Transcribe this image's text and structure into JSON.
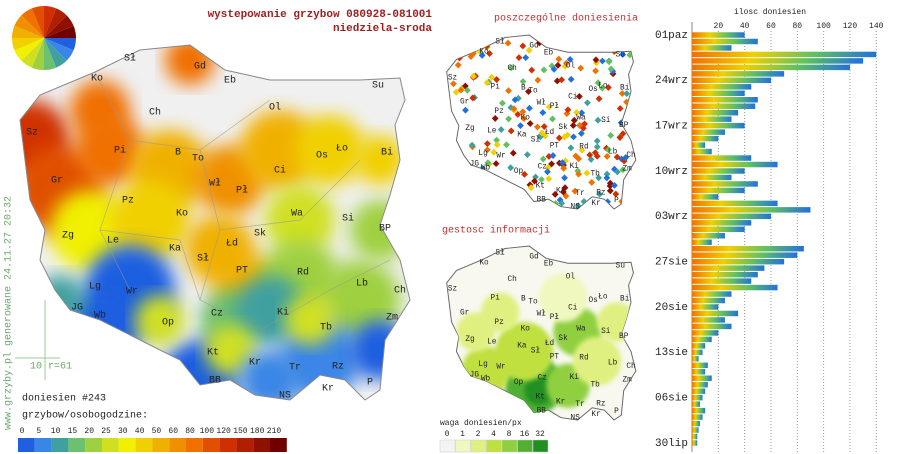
{
  "title": "wystepowanie grzybow 080928-081001",
  "subtitle": "niedziela-sroda",
  "watermark": "www.grzyby.pl generowane 24.11.27 20:32",
  "scale_note": "10 r=61",
  "reports_count": "doniesien #243",
  "legend_title": "grzybow/osobogodzine:",
  "colorbar": {
    "ticks": [
      0,
      5,
      10,
      15,
      20,
      25,
      30,
      40,
      50,
      60,
      80,
      100,
      120,
      150,
      180,
      210
    ],
    "colors": [
      "#1f5fe0",
      "#3a86e6",
      "#3fa0a0",
      "#6cc070",
      "#9fd040",
      "#d0e020",
      "#f0f000",
      "#f0d000",
      "#f0b000",
      "#f09000",
      "#f07000",
      "#e05000",
      "#d03000",
      "#b02000",
      "#901000",
      "#700000"
    ]
  },
  "cities": [
    "Ko",
    "Sł",
    "Gd",
    "Eb",
    "Su",
    "Ol",
    "Ch",
    "Sz",
    "Pi",
    "B",
    "To",
    "Os",
    "Ło",
    "Bi",
    "Gr",
    "Wł",
    "Pł",
    "Ci",
    "Pz",
    "Ko",
    "Wa",
    "Si",
    "Zg",
    "Le",
    "Ka",
    "Łd",
    "Sk",
    "BP",
    "Sł",
    "PT",
    "Rd",
    "Lb",
    "Ch",
    "Lg",
    "JG",
    "Wr",
    "Wb",
    "Op",
    "Cz",
    "Ki",
    "Zm",
    "Tb",
    "Kt",
    "Kr",
    "Tr",
    "Rz",
    "BB",
    "NS",
    "Kr",
    "P"
  ],
  "reports_map": {
    "title": "poszczególne doniesienia"
  },
  "density_map": {
    "title": "gestosc informacji",
    "legend_title": "waga doniesien/px",
    "ticks": [
      0,
      1,
      2,
      4,
      8,
      16,
      32
    ],
    "colors": [
      "#f4f4f4",
      "#f0f8c0",
      "#e0f080",
      "#c0e040",
      "#90d040",
      "#50b030",
      "#209020"
    ]
  },
  "chart_data": {
    "type": "bar",
    "orientation": "horizontal",
    "x_label": "ilosc doniesien",
    "categories": [
      "01paz",
      null,
      null,
      null,
      null,
      null,
      null,
      "24wrz",
      null,
      null,
      null,
      null,
      null,
      null,
      "17wrz",
      null,
      null,
      null,
      null,
      null,
      null,
      "10wrz",
      null,
      null,
      null,
      null,
      null,
      null,
      "03wrz",
      null,
      null,
      null,
      null,
      null,
      null,
      "27sie",
      null,
      null,
      null,
      null,
      null,
      null,
      "20sie",
      null,
      null,
      null,
      null,
      null,
      null,
      "13sie",
      null,
      null,
      null,
      null,
      null,
      null,
      "06sie",
      null,
      null,
      null,
      null,
      null,
      null,
      "30lip"
    ],
    "values": [
      40,
      50,
      30,
      140,
      130,
      120,
      70,
      60,
      45,
      40,
      50,
      48,
      35,
      30,
      40,
      25,
      20,
      10,
      15,
      45,
      65,
      40,
      30,
      50,
      40,
      20,
      65,
      90,
      60,
      45,
      40,
      25,
      15,
      85,
      80,
      70,
      55,
      50,
      45,
      65,
      30,
      25,
      20,
      35,
      25,
      30,
      20,
      15,
      10,
      8,
      5,
      12,
      10,
      15,
      12,
      10,
      8,
      6,
      10,
      8,
      6,
      5,
      4,
      4
    ],
    "gradient": [
      "#f07000",
      "#f0d000",
      "#60c060",
      "#2070e0"
    ],
    "xlim": [
      0,
      155
    ],
    "xticks": [
      20,
      40,
      60,
      80,
      100,
      120,
      140
    ],
    "grid": true
  }
}
